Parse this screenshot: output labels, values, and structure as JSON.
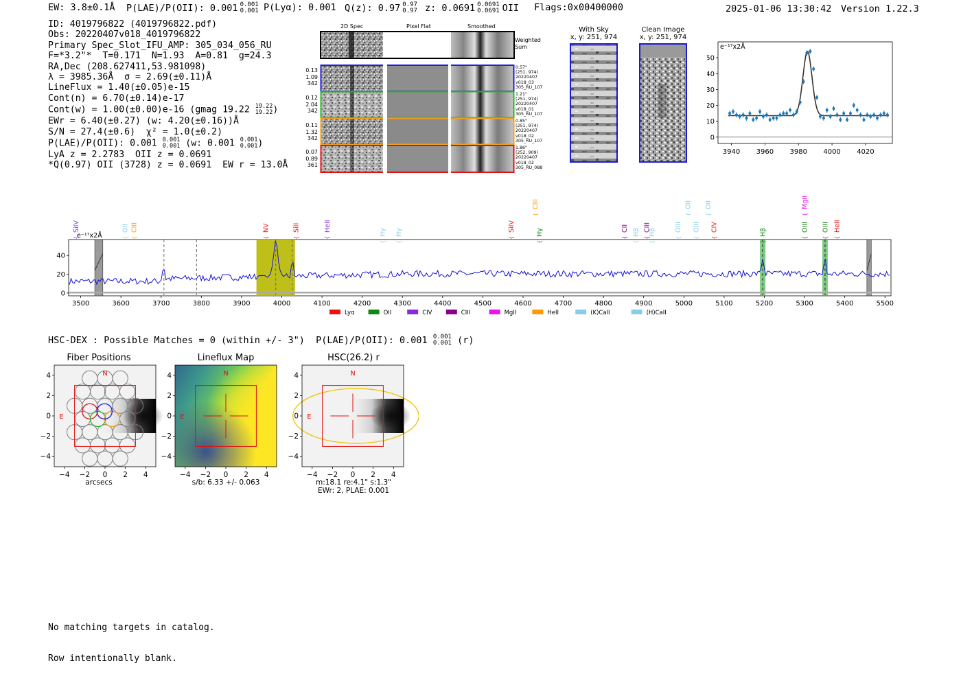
{
  "header": {
    "ew": "EW: 3.8±0.1Å",
    "plae_label": "P(LAE)/P(OII): 0.001",
    "plae_sup": "0.001",
    "plae_sub": "0.001",
    "plya": "P(Lyα): 0.001",
    "qz_label": "Q(z): 0.97",
    "qz_sup": "0.97",
    "qz_sub": "0.97",
    "z_label": "z: 0.0691",
    "z_sup": "0.0691",
    "z_sub": "0.0691",
    "z_line": "OII",
    "flags": "Flags:0x00400000",
    "datetime": "2025-01-06 13:30:42",
    "version": "Version 1.22.3"
  },
  "info": {
    "id": "ID: 4019796822 (4019796822.pdf)",
    "obs": "Obs: 20220407v018_4019796822",
    "primary": "Primary Spec_Slot_IFU_AMP: 305_034_056_RU",
    "fwhm": "F=*3.2\"*  T=0.171  N=1.93  A=0.81  g=24.3",
    "radec": "RA,Dec (208.627411,53.981098)",
    "lambda": "λ = 3985.36Å  σ = 2.69(±0.11)Å",
    "lineflux": "LineFlux = 1.40(±0.05)e-15",
    "cont_n": "Cont(n) = 6.70(±0.14)e-17",
    "cont_w": "Cont(w) = 1.00(±0.00)e-16 (gmag 19.22",
    "cont_w_sup": "19.22",
    "cont_w_sub": "19.22",
    "cont_w_end": ")",
    "ewr": "EWr = 6.40(±0.27) (w: 4.20(±0.16))Å",
    "sn": "S/N = 27.4(±0.6)  χ² = 1.0(±0.2)",
    "plae": "P(LAE)/P(OII): 0.001",
    "plae_sup": "0.001",
    "plae_sub": "0.001",
    "plae_w": "(w: 0.001",
    "plae_w_sup": "0.001",
    "plae_w_sub": "0.001",
    "plae_w_end": ")",
    "lya": "LyA z = 2.2783  OII z = 0.0691",
    "q": "*Q(0.97) OII (3728) z = 0.0691  EW r = 13.0Å"
  },
  "cutouts": {
    "col_2d": "2D Spec",
    "col_flat": "Pixel Flat",
    "col_smooth": "Smoothed",
    "weighted": "Weighted\nSum",
    "rows": [
      {
        "left": "0.13\n1.09\n342",
        "right": "0.57\"\n(251, 974)\n20220407\nv018_03\n305_RU_107",
        "color": "#1f1fd6"
      },
      {
        "left": "0.12\n2.04\n342",
        "right": "1.21\"\n(251, 974)\n20220407\nv018_01\n305_RU_107",
        "color": "#2ab52a"
      },
      {
        "left": "0.11\n1.32\n342",
        "right": "0.85\"\n(251, 974)\n20220407\nv018_02\n305_RU_107",
        "color": "#f0a020"
      },
      {
        "left": "0.07\n0.89\n361",
        "right": "1.86\"\n(252, 909)\n20220407\nv018_02\n305_RU_088",
        "color": "#e01010"
      }
    ],
    "with_sky_title": "With Sky",
    "with_sky_xy": "x, y: 251, 974",
    "clean_title": "Clean Image",
    "clean_xy": "x, y: 251, 974"
  },
  "zoom_chart": {
    "type": "scatter",
    "ylabel": "e⁻¹⁷x2Å",
    "xlim": [
      3932,
      4036
    ],
    "ylim": [
      -4,
      60
    ],
    "xticks": [
      3940,
      3960,
      3980,
      4000,
      4020
    ],
    "yticks": [
      0,
      10,
      20,
      30,
      40,
      50
    ],
    "points_x": [
      3939,
      3941,
      3943,
      3945,
      3947,
      3949,
      3951,
      3953,
      3955,
      3957,
      3959,
      3961,
      3963,
      3965,
      3967,
      3969,
      3971,
      3973,
      3975,
      3977,
      3979,
      3981,
      3983,
      3985,
      3987,
      3989,
      3991,
      3993,
      3995,
      3997,
      3999,
      4001,
      4003,
      4005,
      4007,
      4009,
      4011,
      4013,
      4015,
      4017,
      4019,
      4021,
      4023,
      4025,
      4027,
      4029,
      4031,
      4033
    ],
    "points_y": [
      15,
      16,
      14,
      13,
      14,
      12,
      15,
      11,
      12,
      16,
      13,
      14,
      11,
      12,
      12,
      14,
      15,
      15,
      17,
      14,
      16,
      22,
      35,
      53,
      54,
      43,
      25,
      13,
      12,
      17,
      13,
      18,
      14,
      11,
      15,
      11,
      15,
      20,
      17,
      14,
      11,
      14,
      13,
      14,
      12,
      14,
      15,
      14
    ],
    "model": {
      "continuum": 13.5,
      "amplitude": 40.5,
      "center": 3985.36,
      "sigma": 2.69
    }
  },
  "full_spectrum": {
    "type": "line",
    "ylabel": "e⁻¹⁷x2Å",
    "xlim": [
      3470,
      5515
    ],
    "ylim": [
      -3,
      57
    ],
    "xticks": [
      3500,
      3600,
      3700,
      3800,
      3900,
      4000,
      4100,
      4200,
      4300,
      4400,
      4500,
      4600,
      4700,
      4800,
      4900,
      5000,
      5100,
      5200,
      5300,
      5400,
      5500
    ],
    "yticks": [
      0,
      20,
      40
    ],
    "peak_x": 3985,
    "peak_y": 55,
    "highlight_band": [
      3937,
      4033
    ],
    "dashed_lines": [
      3707,
      3788,
      3985,
      4026
    ],
    "green_bands": [
      5196,
      5351
    ],
    "hatched_bands": [
      [
        3535,
        3555
      ],
      [
        5455,
        5466
      ]
    ],
    "line_labels": [
      {
        "name": "SiIV",
        "x": 3488,
        "color": "#8a2be2",
        "row": 1
      },
      {
        "name": "OII",
        "x": 3610,
        "color": "#87ceeb",
        "row": 1
      },
      {
        "name": "CIII",
        "x": 3632,
        "color": "#ff9900",
        "row": 1
      },
      {
        "name": "NV",
        "x": 3960,
        "color": "#ee1111",
        "row": 0
      },
      {
        "name": "SiII",
        "x": 4035,
        "color": "#ee1111",
        "row": 1
      },
      {
        "name": "HeII",
        "x": 4113,
        "color": "#8a2be2",
        "row": 1
      },
      {
        "name": "Hγ",
        "x": 4250,
        "color": "#87ceeb",
        "row": 2
      },
      {
        "name": "Hγ",
        "x": 4290,
        "color": "#87ceeb",
        "row": 2
      },
      {
        "name": "SiIV",
        "x": 4570,
        "color": "#ee1111",
        "row": 1
      },
      {
        "name": "CIII",
        "x": 4630,
        "color": "#ff9900",
        "row": -1
      },
      {
        "name": "Hγ",
        "x": 4640,
        "color": "#118811",
        "row": 2
      },
      {
        "name": "CII",
        "x": 4852,
        "color": "#8b008b",
        "row": 1
      },
      {
        "name": "Hβ",
        "x": 4880,
        "color": "#87ceeb",
        "row": 2
      },
      {
        "name": "CIII",
        "x": 4907,
        "color": "#8b008b",
        "row": 1
      },
      {
        "name": "Hβ",
        "x": 4920,
        "color": "#87ceeb",
        "row": 2
      },
      {
        "name": "OIII",
        "x": 4985,
        "color": "#87ceeb",
        "row": 1
      },
      {
        "name": "OII",
        "x": 5010,
        "color": "#87ceeb",
        "row": -1
      },
      {
        "name": "OIII",
        "x": 5030,
        "color": "#87ceeb",
        "row": 1
      },
      {
        "name": "OII",
        "x": 5060,
        "color": "#87ceeb",
        "row": -1
      },
      {
        "name": "CIV",
        "x": 5075,
        "color": "#ee1111",
        "row": 1
      },
      {
        "name": "Hβ",
        "x": 5196,
        "color": "#118811",
        "row": 2
      },
      {
        "name": "OIII",
        "x": 5300,
        "color": "#118811",
        "row": 1
      },
      {
        "name": "MgII",
        "x": 5300,
        "color": "#ee11ee",
        "row": -1
      },
      {
        "name": "OIII",
        "x": 5351,
        "color": "#118811",
        "row": 1
      },
      {
        "name": "HeII",
        "x": 5380,
        "color": "#ee1111",
        "row": 1
      }
    ],
    "legend": [
      {
        "name": "Lyα",
        "color": "#ee1111"
      },
      {
        "name": "OII",
        "color": "#118811"
      },
      {
        "name": "CIV",
        "color": "#8a2be2"
      },
      {
        "name": "CIII",
        "color": "#8b008b"
      },
      {
        "name": "MgII",
        "color": "#ee11ee"
      },
      {
        "name": "HeII",
        "color": "#ff9900"
      },
      {
        "name": "(K)CaII",
        "color": "#87ceeb"
      },
      {
        "name": "(H)CaII",
        "color": "#87ceeb"
      }
    ]
  },
  "hsc": {
    "matches": "HSC-DEX : Possible Matches = 0 (within +/- 3\")  P(LAE)/P(OII): 0.001",
    "matches_sup": "0.001",
    "matches_sub": "0.001",
    "matches_band": "(r)"
  },
  "maps": {
    "fiber_title": "Fiber Positions",
    "lineflux_title": "Lineflux Map",
    "hsc_title": "HSC(26.2) r",
    "xlabel_fiber": "arcsecs",
    "lineflux_caption": "s/b: 6.33 +/- 0.063",
    "hsc_caption1": "m:18.1  re:4.1\"  s:1.3\"",
    "hsc_caption2": "EWr: 2, PLAE: 0.001",
    "north": "N",
    "east": "E",
    "ticks": [
      "4",
      "2",
      "0",
      "−2",
      "−4"
    ],
    "xticks": [
      "−4",
      "−2",
      "0",
      "2",
      "4"
    ]
  },
  "footer": {
    "line1": "No matching targets in catalog.",
    "line2": "Row intentionally blank."
  }
}
